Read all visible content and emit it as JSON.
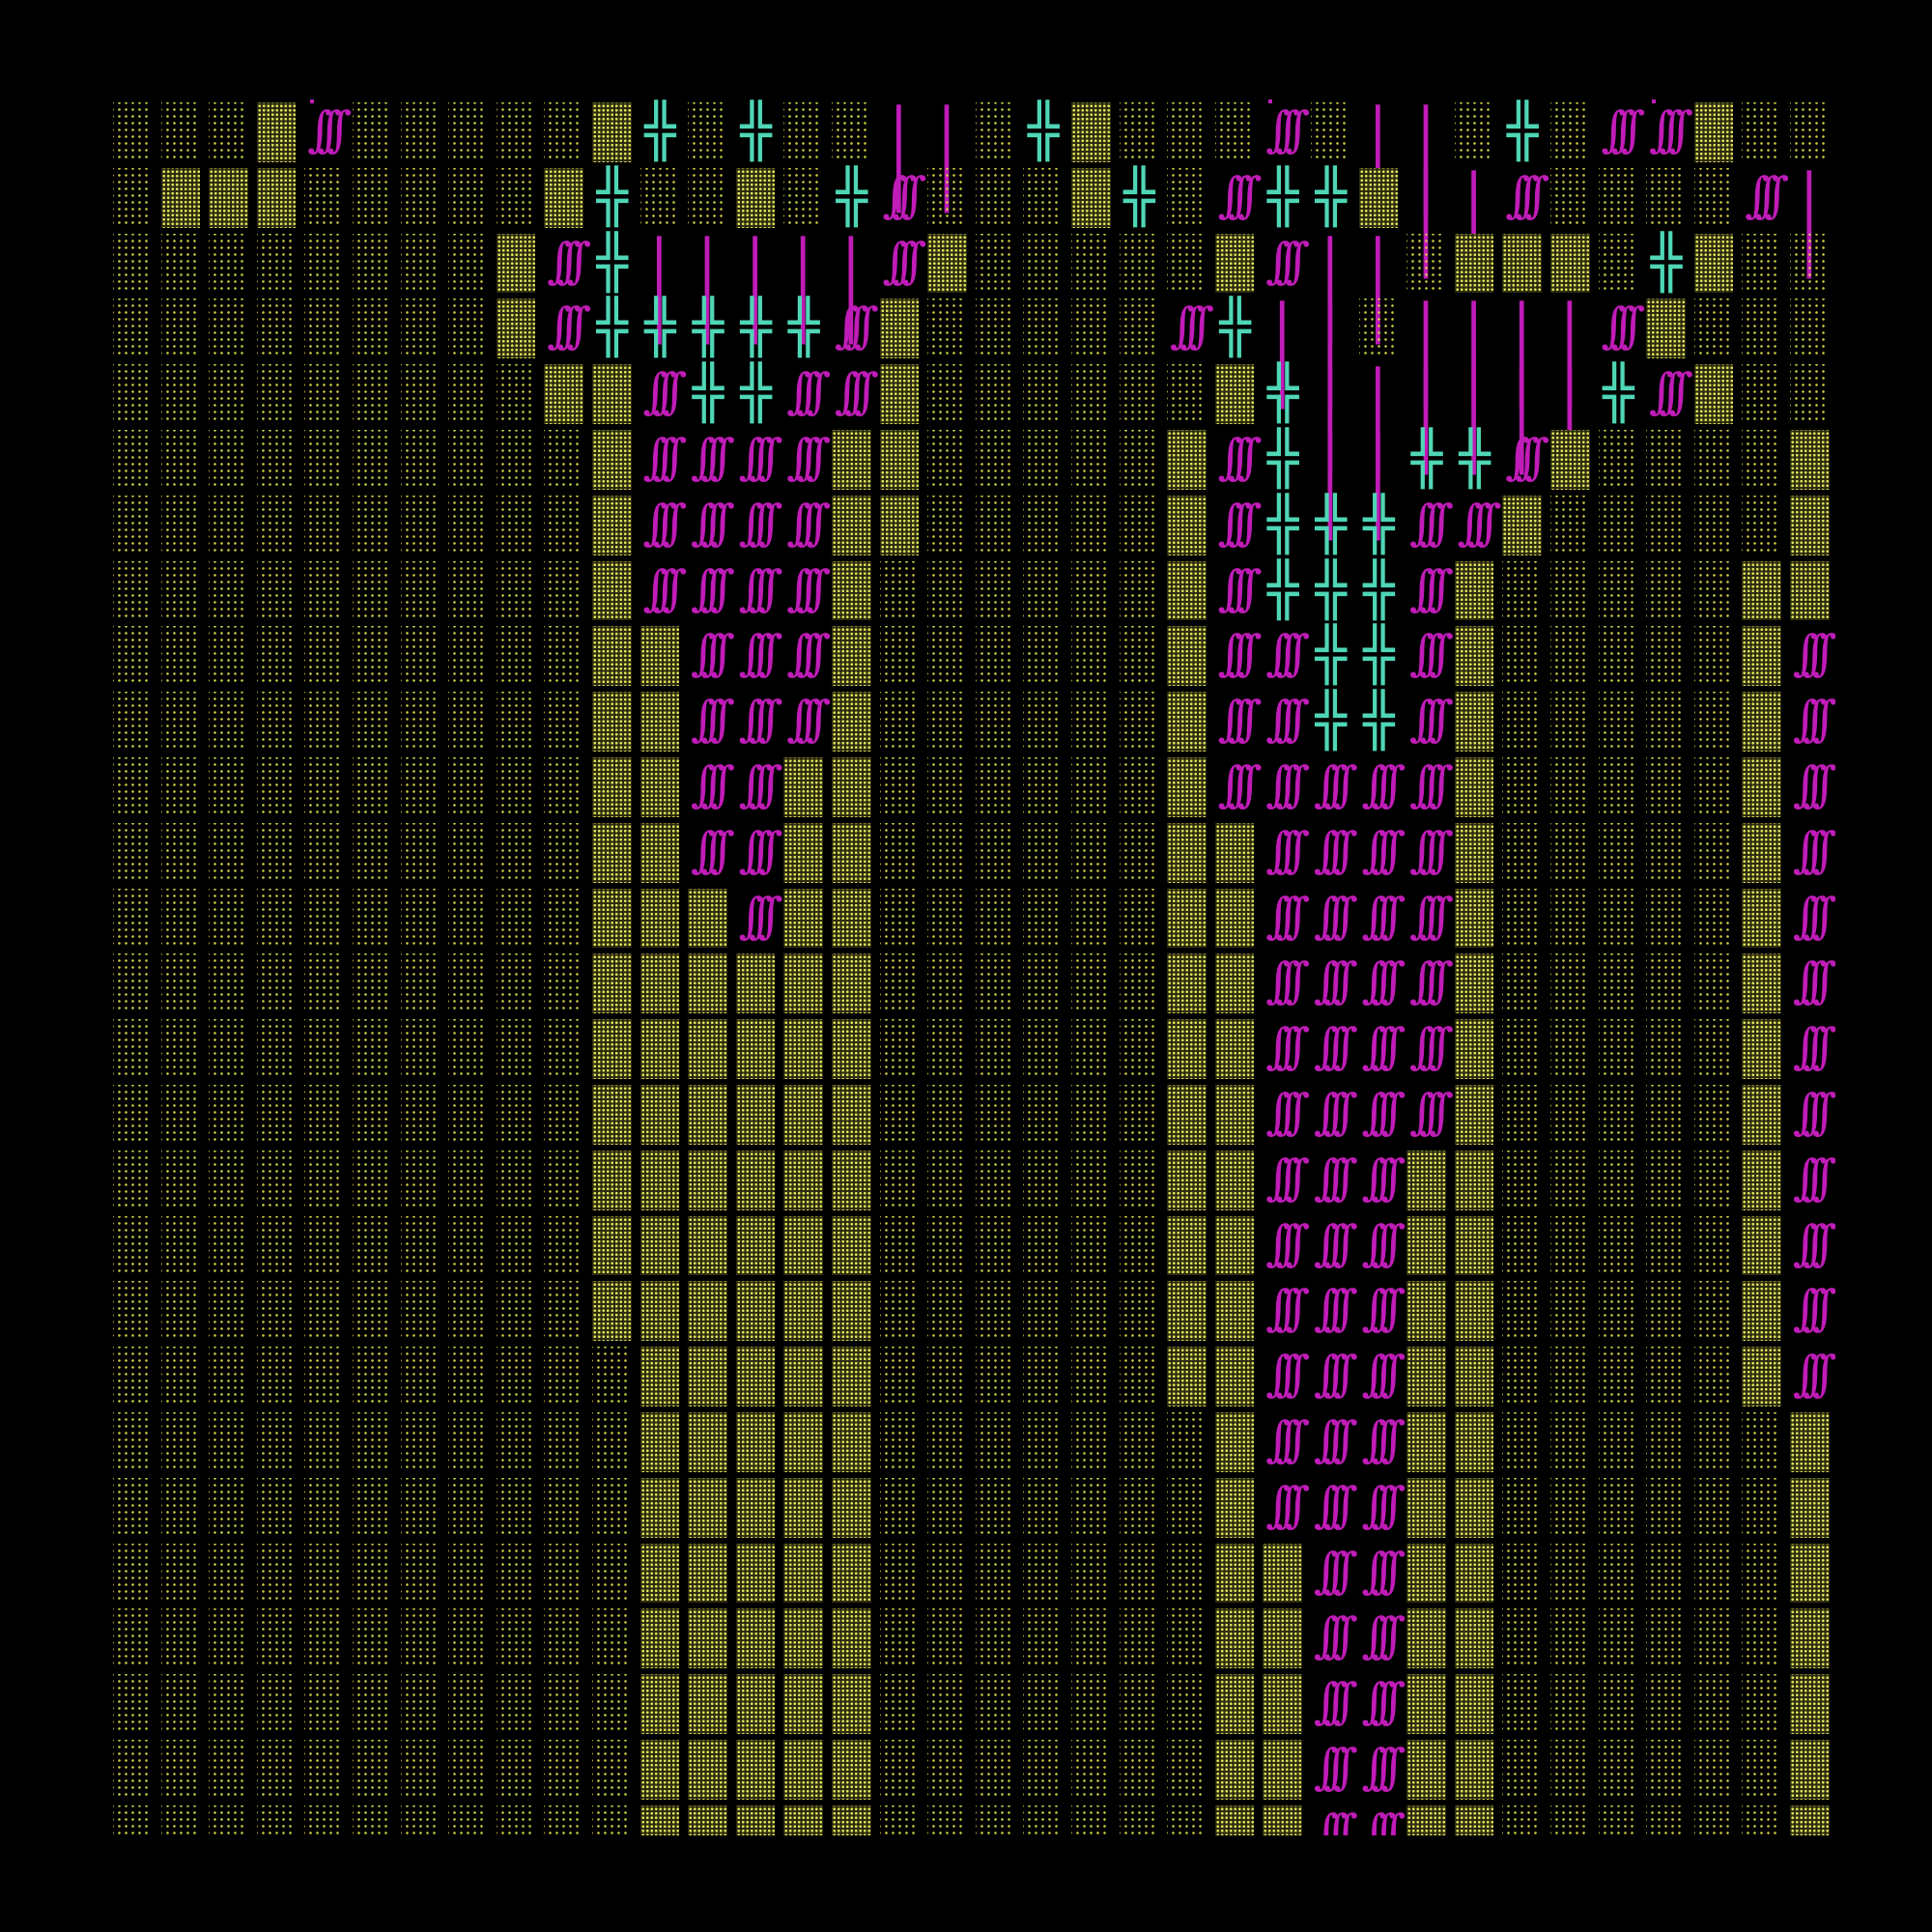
{
  "screen": {
    "background": "#000000",
    "palette": {
      "dot": "#d6d64a",
      "magenta": "#c01cb8",
      "teal": "#4fd6b5"
    }
  },
  "glyphs": {
    "dot": "",
    "shade": "",
    "slash": "∫∫∫",
    "cross": "╬",
    "bar": "| |"
  },
  "rows": [
    "dddSsdddddSxdxddbbdxSdddsdbbdxdssSdddxssdS",
    "dSSSdddddSxddSdxsdddSxdsxxSbbsddddsbbsbbb",
    "ddddddddSsxbbbbbsSdddddSsbbdSSSdxSdddddSxdSs",
    "ddddddddSsxxxxxsSdddddsxbbdbbbbsSdddddSsbbddd",
    "dddddddddSSsxxssSddddddSxbbbbbbxsSddddSsxbbdb",
    "ddddddddddSssssSSdddddSsxbbxxsSddddSsxbbbb",
    "ddddddddddSssssSSdddddSsxxxssSdddddSsxbbbb",
    "ddddddddddSssssSddddddSsxxxsSdddddSSxxbb",
    "ddddddddddSSsssSddddddSssxxsSdddddSsxxd",
    "ddddddddddSSsssSddddddSssxxsSdddddSsxxd",
    "ddddddddddSSssSSddddddSsssssSdddddSsxxd",
    "ddddddddddSSssSSddddddSSssssSdddddSsxxd",
    "ddddddddddSSSsSSddddddSSssssSdddddSsxxs",
    "ddddddddddSSSSSSddddddSSssssSdddddSssxs",
    "ddddddddddSSSSSSddddddSSssssSdddddSssxs",
    "ddddddddddSSSSSSddddddSSssssSdddddSssss",
    "ddddddddddSSSSSSddddddSSsssSSdddddSssss",
    "ddddddddddSSSSSSddddddSSsssSSdddddSssss",
    "ddddddddddSSSSSSddddddSSsssSSdddddSssss",
    "dddddddddddSSSSSddddddSSsssSSdddddSssss",
    "dddddddddddSSSSSdddddddSsssSSddddddSsss",
    "dddddddddddSSSSSdddddddSsssSSddddddSsss",
    "dddddddddddSSSSSdddddddSSssSSddddddSsss",
    "dddddddddddSSSSSdddddddSSssSSddddddSsss",
    "dddddddddddSSSSSdddddddSSssSSddddddSsss",
    "dddddddddddSSSSSdddddddSSssSSddddddSsss",
    "dddddddddddSSSSSdddddddSSssSSddddddSsss"
  ],
  "legend": {
    "d": "dot",
    "S": "shade",
    "s": "slash",
    "x": "cross",
    "b": "bar"
  }
}
